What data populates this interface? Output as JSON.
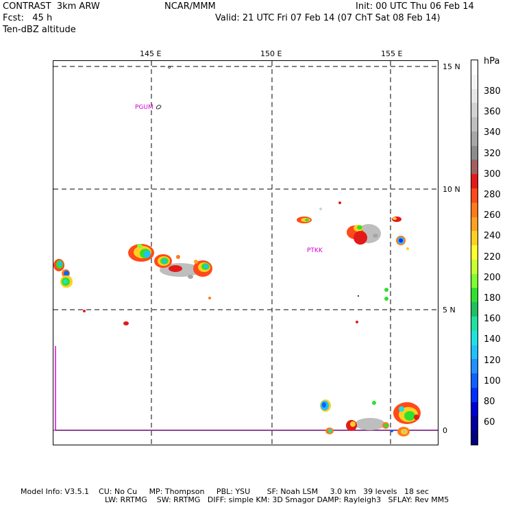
{
  "header": {
    "line1_left": "CONTRAST  3km ARW",
    "line1_mid": "NCAR/MMM",
    "line1_right": "Init: 00 UTC Thu 06 Feb 14",
    "line2_left": "Fcst:   45 h",
    "line2_right": "Valid: 21 UTC Fri 07 Feb 14 (07 ChT Sat 08 Feb 14)",
    "line3_left": "Ten-dBZ altitude"
  },
  "map": {
    "lon_labels": [
      "145 E",
      "150 E",
      "155 E"
    ],
    "lat_labels": [
      "15 N",
      "10 N",
      "5 N",
      "0"
    ],
    "stations": [
      "PGUM",
      "PTKK"
    ]
  },
  "colorbar": {
    "unit": "hPa",
    "labels": [
      "380",
      "360",
      "340",
      "320",
      "300",
      "280",
      "260",
      "240",
      "220",
      "200",
      "180",
      "160",
      "140",
      "120",
      "100",
      "80",
      "60"
    ],
    "colors": [
      "#ffffff",
      "#f4f4f4",
      "#e6e6e6",
      "#d2d2d2",
      "#bebebe",
      "#a6a6a6",
      "#8c8c8c",
      "#a06060",
      "#e41a1a",
      "#ff4a1a",
      "#ff7a1a",
      "#ffa020",
      "#ffd020",
      "#ffff30",
      "#c8ff30",
      "#80ff30",
      "#30e030",
      "#20c060",
      "#20e0a0",
      "#20e0e0",
      "#20c0ff",
      "#2090ff",
      "#1060ff",
      "#0030ff",
      "#0000d0",
      "#0000a0",
      "#000080"
    ]
  },
  "footer": {
    "line1": "Model Info: V3.5.1    CU: No Cu     MP: Thompson     PBL: YSU       SF: Noah LSM     3.0 km   39 levels   18 sec",
    "line2": "LW: RRTMG    SW: RRTMG   DIFF: simple KM: 3D Smagor DAMP: Rayleigh3   SFLAY: Rev MM5"
  }
}
